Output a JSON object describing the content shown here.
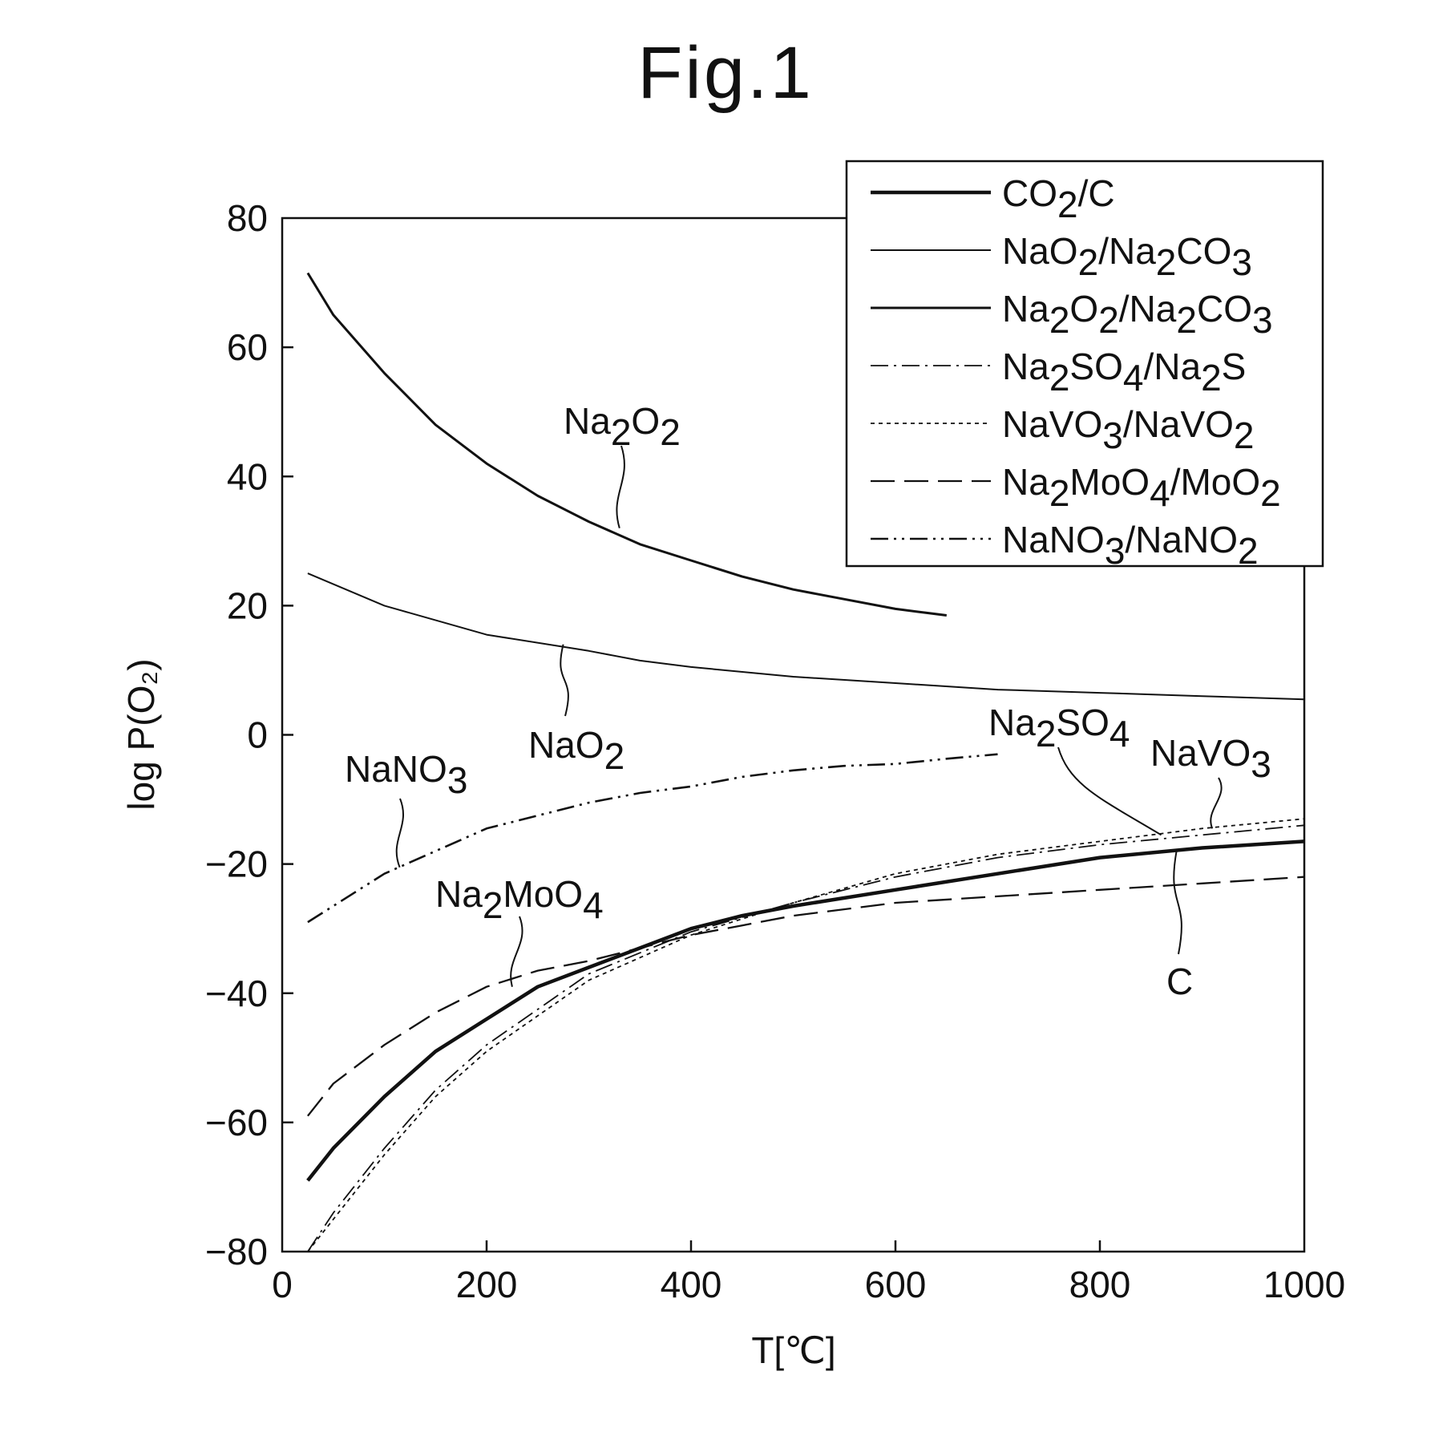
{
  "figure": {
    "title": "Fig.1"
  },
  "chart_data": {
    "type": "line",
    "xlabel": "T[℃]",
    "ylabel": "log P(O₂)",
    "xlim": [
      0,
      1000
    ],
    "ylim": [
      -80,
      80
    ],
    "x_ticks": [
      0,
      200,
      400,
      600,
      800,
      1000
    ],
    "x_tick_labels": [
      "0",
      "200",
      "400",
      "600",
      "800",
      "1000"
    ],
    "y_ticks": [
      80,
      60,
      40,
      20,
      0,
      -20,
      -40,
      -60,
      -80
    ],
    "y_tick_labels": [
      "80",
      "60",
      "40",
      "20",
      "0",
      "−20",
      "−40",
      "−60",
      "−80"
    ],
    "grid": false,
    "legend_position": "top-right",
    "series": [
      {
        "name": "CO₂/C",
        "style": "thick-solid",
        "color": "#111111",
        "x": [
          25,
          50,
          100,
          150,
          200,
          250,
          300,
          350,
          400,
          450,
          500,
          600,
          700,
          800,
          900,
          1000
        ],
        "y": [
          -69,
          -64,
          -56,
          -49,
          -44,
          -39,
          -36,
          -33,
          -30,
          -28,
          -26.5,
          -24,
          -21.5,
          -19,
          -17.5,
          -16.5
        ]
      },
      {
        "name": "NaO₂/Na₂CO₃",
        "style": "thin-solid",
        "color": "#111111",
        "x": [
          25,
          100,
          200,
          300,
          350,
          400,
          500,
          600,
          700,
          800,
          900,
          1000
        ],
        "y": [
          25,
          20,
          15.5,
          13,
          11.5,
          10.5,
          9,
          8,
          7,
          6.5,
          6,
          5.5
        ]
      },
      {
        "name": "Na₂O₂/Na₂CO₃",
        "style": "medium-solid",
        "color": "#111111",
        "x": [
          25,
          50,
          100,
          150,
          200,
          250,
          300,
          350,
          400,
          450,
          500,
          550,
          600,
          650
        ],
        "y": [
          71.5,
          65,
          56,
          48,
          42,
          37,
          33,
          29.5,
          27,
          24.5,
          22.5,
          21,
          19.5,
          18.5
        ]
      },
      {
        "name": "Na₂SO₄/Na₂S",
        "style": "dash-dot",
        "color": "#111111",
        "x": [
          25,
          50,
          100,
          150,
          200,
          300,
          400,
          500,
          600,
          700,
          800,
          900,
          1000
        ],
        "y": [
          -80,
          -74,
          -64,
          -55,
          -48,
          -37,
          -30.5,
          -26,
          -22,
          -19,
          -17,
          -15.5,
          -14
        ]
      },
      {
        "name": "NaVO₃/NaVO₂",
        "style": "dotted",
        "color": "#111111",
        "x": [
          25,
          50,
          100,
          150,
          200,
          300,
          400,
          500,
          600,
          700,
          800,
          900,
          1000
        ],
        "y": [
          -80,
          -75,
          -65,
          -56,
          -49,
          -38,
          -31,
          -26,
          -21.5,
          -18.5,
          -16.5,
          -14.5,
          -13
        ]
      },
      {
        "name": "Na₂MoO₄/MoO₂",
        "style": "dashed",
        "color": "#111111",
        "x": [
          25,
          50,
          100,
          150,
          200,
          250,
          300,
          350,
          400,
          450,
          500,
          600,
          700,
          800,
          900,
          1000
        ],
        "y": [
          -59,
          -54,
          -48,
          -43,
          -39,
          -36.5,
          -35,
          -33,
          -31,
          -29.5,
          -28,
          -26,
          -25,
          -24,
          -23,
          -22
        ]
      },
      {
        "name": "NaNO₃/NaNO₂",
        "style": "dash-dot-dot",
        "color": "#111111",
        "x": [
          25,
          100,
          200,
          250,
          300,
          350,
          400,
          450,
          500,
          550,
          600,
          650,
          700
        ],
        "y": [
          -29,
          -21.5,
          -14.5,
          -12.5,
          -10.5,
          -9,
          -8,
          -6.5,
          -5.5,
          -4.8,
          -4.5,
          -3.7,
          -3
        ]
      }
    ],
    "annotations": [
      {
        "id": "na2o2",
        "parts": [
          [
            "Na",
            false
          ],
          [
            "2",
            true
          ],
          [
            "O",
            false
          ],
          [
            "2",
            true
          ]
        ],
        "anchor": [
          330,
          32
        ]
      },
      {
        "id": "nao2",
        "parts": [
          [
            "NaO",
            false
          ],
          [
            "2",
            true
          ]
        ],
        "anchor": [
          275,
          14
        ]
      },
      {
        "id": "nano3",
        "parts": [
          [
            "NaNO",
            false
          ],
          [
            "3",
            true
          ]
        ],
        "anchor": [
          115,
          -20.5
        ]
      },
      {
        "id": "na2moo4",
        "parts": [
          [
            "Na",
            false
          ],
          [
            "2",
            true
          ],
          [
            "MoO",
            false
          ],
          [
            "4",
            true
          ]
        ],
        "anchor": [
          225,
          -39
        ]
      },
      {
        "id": "na2so4",
        "parts": [
          [
            "Na",
            false
          ],
          [
            "2",
            true
          ],
          [
            "SO",
            false
          ],
          [
            "4",
            true
          ]
        ],
        "anchor": [
          860,
          -15.5
        ]
      },
      {
        "id": "navo3",
        "parts": [
          [
            "NaVO",
            false
          ],
          [
            "3",
            true
          ]
        ],
        "anchor": [
          910,
          -14.5
        ]
      },
      {
        "id": "c",
        "parts": [
          [
            "C",
            false
          ]
        ],
        "anchor": [
          875,
          -18
        ]
      }
    ]
  },
  "legend_items": [
    {
      "parts": [
        [
          "CO",
          false
        ],
        [
          "2",
          true
        ],
        [
          "/C",
          false
        ]
      ]
    },
    {
      "parts": [
        [
          "NaO",
          false
        ],
        [
          "2",
          true
        ],
        [
          "/Na",
          false
        ],
        [
          "2",
          true
        ],
        [
          "CO",
          false
        ],
        [
          "3",
          true
        ]
      ]
    },
    {
      "parts": [
        [
          "Na",
          false
        ],
        [
          "2",
          true
        ],
        [
          "O",
          false
        ],
        [
          "2",
          true
        ],
        [
          "/Na",
          false
        ],
        [
          "2",
          true
        ],
        [
          "CO",
          false
        ],
        [
          "3",
          true
        ]
      ]
    },
    {
      "parts": [
        [
          "Na",
          false
        ],
        [
          "2",
          true
        ],
        [
          "SO",
          false
        ],
        [
          "4",
          true
        ],
        [
          "/Na",
          false
        ],
        [
          "2",
          true
        ],
        [
          "S",
          false
        ]
      ]
    },
    {
      "parts": [
        [
          "NaVO",
          false
        ],
        [
          "3",
          true
        ],
        [
          "/NaVO",
          false
        ],
        [
          "2",
          true
        ]
      ]
    },
    {
      "parts": [
        [
          "Na",
          false
        ],
        [
          "2",
          true
        ],
        [
          "MoO",
          false
        ],
        [
          "4",
          true
        ],
        [
          "/MoO",
          false
        ],
        [
          "2",
          true
        ]
      ]
    },
    {
      "parts": [
        [
          "NaNO",
          false
        ],
        [
          "3",
          true
        ],
        [
          "/NaNO",
          false
        ],
        [
          "2",
          true
        ]
      ]
    }
  ]
}
